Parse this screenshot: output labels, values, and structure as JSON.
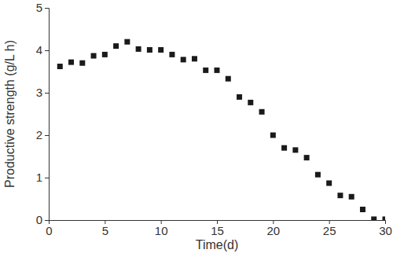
{
  "chart_data": {
    "type": "scatter",
    "x_label": "Time(d)",
    "y_label": "Productive strength (g/L h)",
    "x": [
      1,
      2,
      3,
      4,
      5,
      6,
      7,
      8,
      9,
      10,
      11,
      12,
      13,
      14,
      15,
      16,
      17,
      18,
      19,
      20,
      21,
      22,
      23,
      24,
      25,
      26,
      27,
      28,
      29,
      30
    ],
    "values": [
      3.62,
      3.72,
      3.7,
      3.87,
      3.9,
      4.1,
      4.2,
      4.03,
      4.01,
      4.01,
      3.9,
      3.78,
      3.8,
      3.53,
      3.53,
      3.33,
      2.9,
      2.77,
      2.55,
      2.0,
      1.7,
      1.65,
      1.47,
      1.07,
      0.87,
      0.58,
      0.55,
      0.25,
      0.02,
      0.02
    ],
    "color": "#1a1a1a",
    "marker": "square",
    "xlim": [
      0,
      30
    ],
    "xticks": [
      0,
      5,
      10,
      15,
      20,
      25,
      30
    ],
    "ylim": [
      0,
      5
    ],
    "yticks": [
      0,
      1,
      2,
      3,
      4,
      5
    ],
    "grid": false
  }
}
